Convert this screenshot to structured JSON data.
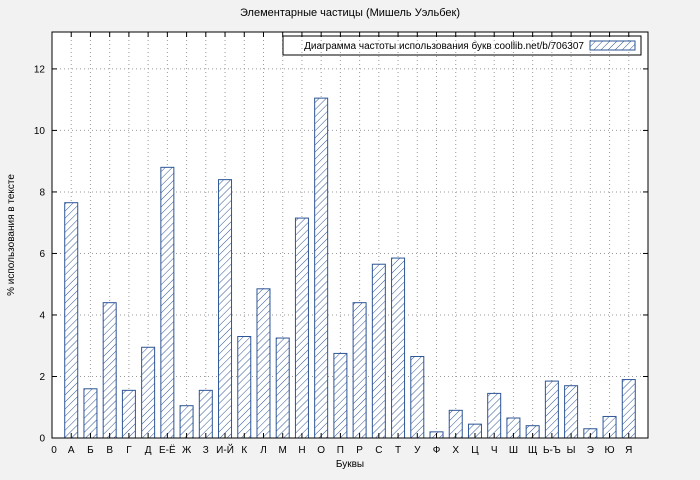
{
  "colors": {
    "background": "#f2f2f2",
    "plot_background": "#ffffff",
    "bar": "#2d5596",
    "grid": "#9a9a9a"
  },
  "chart_data": {
    "type": "bar",
    "title": "Элементарные частицы (Мишель Уэльбек)",
    "legend": "Диаграмма частоты использования букв coollib.net/b/706307",
    "legend_position": "top-right",
    "xlabel": "Буквы",
    "ylabel": "% использования в тексте",
    "origin_label": "0",
    "categories": [
      "А",
      "Б",
      "В",
      "Г",
      "Д",
      "Е-Ё",
      "Ж",
      "З",
      "И-Й",
      "К",
      "Л",
      "М",
      "Н",
      "О",
      "П",
      "Р",
      "С",
      "Т",
      "У",
      "Ф",
      "Х",
      "Ц",
      "Ч",
      "Ш",
      "Щ",
      "Ь-Ъ",
      "Ы",
      "Э",
      "Ю",
      "Я"
    ],
    "values": [
      7.65,
      1.6,
      4.4,
      1.55,
      2.95,
      8.8,
      1.05,
      1.55,
      8.4,
      3.3,
      4.85,
      3.25,
      7.15,
      11.05,
      2.75,
      4.4,
      5.65,
      5.85,
      2.65,
      0.2,
      0.9,
      0.45,
      1.45,
      0.65,
      0.4,
      1.85,
      1.7,
      0.3,
      0.7,
      1.9
    ],
    "yticks": [
      0,
      2,
      4,
      6,
      8,
      10,
      12
    ],
    "ylim": [
      0,
      13.2
    ],
    "grid": true
  }
}
